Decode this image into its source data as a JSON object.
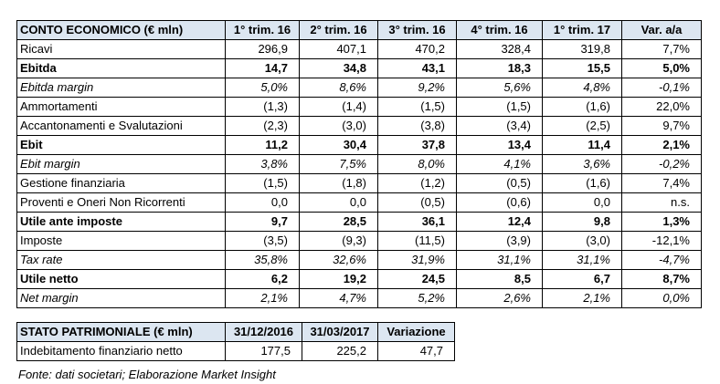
{
  "income_table": {
    "header": [
      "CONTO ECONOMICO (€ mln)",
      "1° trim. 16",
      "2° trim. 16",
      "3° trim. 16",
      "4° trim. 16",
      "1° trim. 17",
      "Var. a/a"
    ],
    "rows": [
      [
        "Ricavi",
        "296,9",
        "407,1",
        "470,2",
        "328,4",
        "319,8",
        "7,7%"
      ],
      [
        "Ebitda",
        "14,7",
        "34,8",
        "43,1",
        "18,3",
        "15,5",
        "5,0%"
      ],
      [
        "Ebitda margin",
        "5,0%",
        "8,6%",
        "9,2%",
        "5,6%",
        "4,8%",
        "-0,1%"
      ],
      [
        "Ammortamenti",
        "(1,3)",
        "(1,4)",
        "(1,5)",
        "(1,5)",
        "(1,6)",
        "22,0%"
      ],
      [
        "Accantonamenti e Svalutazioni",
        "(2,3)",
        "(3,0)",
        "(3,8)",
        "(3,4)",
        "(2,5)",
        "9,7%"
      ],
      [
        "Ebit",
        "11,2",
        "30,4",
        "37,8",
        "13,4",
        "11,4",
        "2,1%"
      ],
      [
        "Ebit margin",
        "3,8%",
        "7,5%",
        "8,0%",
        "4,1%",
        "3,6%",
        "-0,2%"
      ],
      [
        "Gestione finanziaria",
        "(1,5)",
        "(1,8)",
        "(1,2)",
        "(0,5)",
        "(1,6)",
        "7,4%"
      ],
      [
        "Proventi e Oneri Non Ricorrenti",
        "0,0",
        "0,0",
        "(0,5)",
        "(0,6)",
        "0,0",
        "n.s."
      ],
      [
        "Utile ante imposte",
        "9,7",
        "28,5",
        "36,1",
        "12,4",
        "9,8",
        "1,3%"
      ],
      [
        "Imposte",
        "(3,5)",
        "(9,3)",
        "(11,5)",
        "(3,9)",
        "(3,0)",
        "-12,1%"
      ],
      [
        "Tax rate",
        "35,8%",
        "32,6%",
        "31,9%",
        "31,1%",
        "31,1%",
        "-4,7%"
      ],
      [
        "Utile netto",
        "6,2",
        "19,2",
        "24,5",
        "8,5",
        "6,7",
        "8,7%"
      ],
      [
        "Net margin",
        "2,1%",
        "4,7%",
        "5,2%",
        "2,6%",
        "2,1%",
        "0,0%"
      ]
    ]
  },
  "balance_table": {
    "header": [
      "STATO PATRIMONIALE (€ mln)",
      "31/12/2016",
      "31/03/2017",
      "Variazione"
    ],
    "rows": [
      [
        "Indebitamento finanziario netto",
        "177,5",
        "225,2",
        "47,7"
      ]
    ]
  },
  "source": "Fonte: dati societari; Elaborazione Market Insight"
}
